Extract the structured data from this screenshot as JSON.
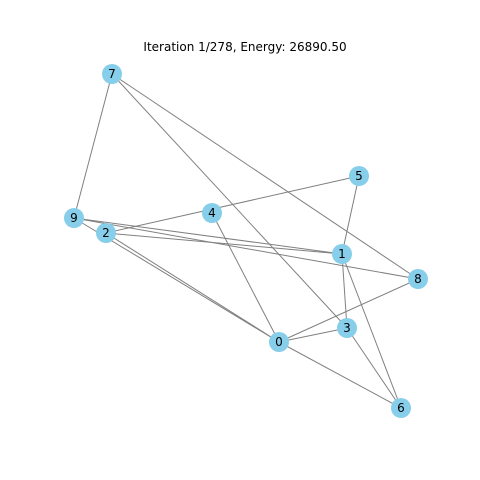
{
  "title": "Iteration 1/278, Energy: 26890.50",
  "colors": {
    "node_fill": "#87ceeb",
    "edge_stroke": "#808080",
    "label_color": "#000000",
    "background": "#ffffff"
  },
  "graph": {
    "nodes": [
      {
        "id": "0",
        "label": "0"
      },
      {
        "id": "1",
        "label": "1"
      },
      {
        "id": "2",
        "label": "2"
      },
      {
        "id": "3",
        "label": "3"
      },
      {
        "id": "4",
        "label": "4"
      },
      {
        "id": "5",
        "label": "5"
      },
      {
        "id": "6",
        "label": "6"
      },
      {
        "id": "7",
        "label": "7"
      },
      {
        "id": "8",
        "label": "8"
      },
      {
        "id": "9",
        "label": "9"
      }
    ],
    "edges": [
      [
        "7",
        "9"
      ],
      [
        "7",
        "3"
      ],
      [
        "7",
        "8"
      ],
      [
        "9",
        "1"
      ],
      [
        "9",
        "8"
      ],
      [
        "9",
        "0"
      ],
      [
        "2",
        "5"
      ],
      [
        "2",
        "1"
      ],
      [
        "2",
        "0"
      ],
      [
        "4",
        "0"
      ],
      [
        "5",
        "1"
      ],
      [
        "1",
        "3"
      ],
      [
        "1",
        "6"
      ],
      [
        "0",
        "8"
      ],
      [
        "0",
        "3"
      ],
      [
        "0",
        "6"
      ],
      [
        "3",
        "6"
      ]
    ]
  }
}
